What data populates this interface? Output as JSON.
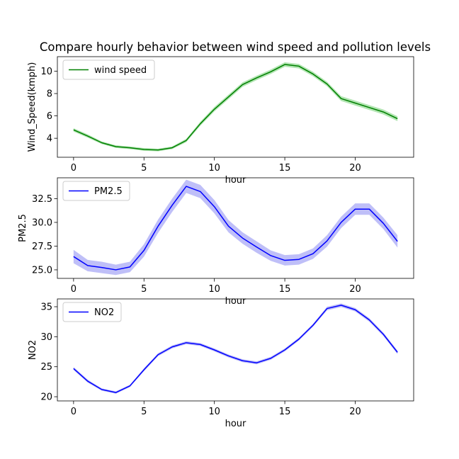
{
  "title": "Compare hourly behavior between wind speed and pollution levels",
  "chart_data": [
    {
      "type": "line",
      "ylabel": "Wind_Speed(kmph)",
      "xlabel": "hour",
      "xlim": [
        -1.15,
        24.15
      ],
      "ylim": [
        2.3,
        11.3
      ],
      "xticks": [
        0,
        5,
        10,
        15,
        20
      ],
      "yticks": [
        4,
        6,
        8,
        10
      ],
      "ytick_labels": [
        "4",
        "6",
        "8",
        "10"
      ],
      "legend": "upper-left",
      "series": [
        {
          "name": "wind speed",
          "color": "#008000",
          "band_color": "#66cc66",
          "x": [
            0,
            1,
            2,
            3,
            4,
            5,
            6,
            7,
            8,
            9,
            10,
            11,
            12,
            13,
            14,
            15,
            16,
            17,
            18,
            19,
            20,
            21,
            22,
            23
          ],
          "values": [
            4.75,
            4.2,
            3.6,
            3.25,
            3.15,
            3.0,
            2.95,
            3.15,
            3.8,
            5.3,
            6.6,
            7.7,
            8.8,
            9.4,
            9.95,
            10.6,
            10.45,
            9.75,
            8.85,
            7.55,
            7.15,
            6.75,
            6.35,
            5.75
          ],
          "band": [
            0.15,
            0.15,
            0.12,
            0.12,
            0.12,
            0.12,
            0.12,
            0.12,
            0.15,
            0.18,
            0.2,
            0.2,
            0.2,
            0.2,
            0.2,
            0.2,
            0.2,
            0.2,
            0.2,
            0.22,
            0.22,
            0.22,
            0.22,
            0.22
          ]
        }
      ]
    },
    {
      "type": "line",
      "ylabel": "PM2.5",
      "xlabel": "hour",
      "xlim": [
        -1.15,
        24.15
      ],
      "ylim": [
        24.1,
        34.7
      ],
      "xticks": [
        0,
        5,
        10,
        15,
        20
      ],
      "yticks": [
        25.0,
        27.5,
        30.0,
        32.5
      ],
      "ytick_labels": [
        "25.0",
        "27.5",
        "30.0",
        "32.5"
      ],
      "legend": "upper-left",
      "series": [
        {
          "name": "PM2.5",
          "color": "#0000ff",
          "band_color": "#8080f2",
          "x": [
            0,
            1,
            2,
            3,
            4,
            5,
            6,
            7,
            8,
            9,
            10,
            11,
            12,
            13,
            14,
            15,
            16,
            17,
            18,
            19,
            20,
            21,
            22,
            23
          ],
          "values": [
            26.4,
            25.45,
            25.25,
            25.0,
            25.3,
            27.05,
            29.6,
            31.8,
            33.8,
            33.25,
            31.65,
            29.6,
            28.35,
            27.4,
            26.5,
            26.0,
            26.1,
            26.7,
            28.05,
            30.0,
            31.4,
            31.4,
            29.9,
            28.0
          ],
          "band": [
            0.7,
            0.6,
            0.6,
            0.55,
            0.55,
            0.65,
            0.7,
            0.7,
            0.7,
            0.7,
            0.7,
            0.65,
            0.6,
            0.6,
            0.55,
            0.55,
            0.55,
            0.55,
            0.6,
            0.6,
            0.6,
            0.6,
            0.6,
            0.65
          ]
        }
      ]
    },
    {
      "type": "line",
      "ylabel": "NO2",
      "xlabel": "hour",
      "xlim": [
        -1.15,
        24.15
      ],
      "ylim": [
        19.3,
        36.3
      ],
      "xticks": [
        0,
        5,
        10,
        15,
        20
      ],
      "yticks": [
        20,
        25,
        30,
        35
      ],
      "ytick_labels": [
        "20",
        "25",
        "30",
        "35"
      ],
      "legend": "upper-left",
      "series": [
        {
          "name": "NO2",
          "color": "#0000ff",
          "band_color": "#8080f2",
          "x": [
            0,
            1,
            2,
            3,
            4,
            5,
            6,
            7,
            8,
            9,
            10,
            11,
            12,
            13,
            14,
            15,
            16,
            17,
            18,
            19,
            20,
            21,
            22,
            23
          ],
          "values": [
            24.7,
            22.6,
            21.2,
            20.7,
            21.8,
            24.5,
            27.0,
            28.3,
            29.0,
            28.7,
            27.8,
            26.8,
            26.0,
            25.65,
            26.4,
            27.8,
            29.6,
            31.9,
            34.7,
            35.25,
            34.5,
            32.8,
            30.4,
            27.4
          ],
          "band": [
            0.25,
            0.25,
            0.2,
            0.2,
            0.2,
            0.25,
            0.25,
            0.25,
            0.25,
            0.25,
            0.25,
            0.25,
            0.25,
            0.25,
            0.25,
            0.25,
            0.25,
            0.25,
            0.3,
            0.3,
            0.3,
            0.3,
            0.3,
            0.3
          ]
        }
      ]
    }
  ]
}
